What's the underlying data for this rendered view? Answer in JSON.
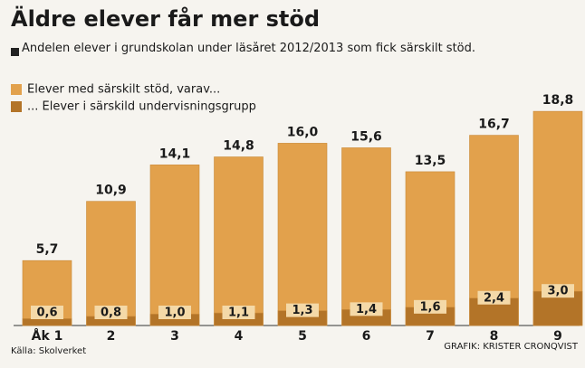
{
  "chart_data": {
    "type": "bar",
    "title": "Äldre elever får mer stöd",
    "subtitle": "Andelen elever i grundskolan under läsåret 2012/2013 som fick särskilt stöd.",
    "categories": [
      "Åk 1",
      "2",
      "3",
      "4",
      "5",
      "6",
      "7",
      "8",
      "9"
    ],
    "series": [
      {
        "name": "Elever med särskilt stöd, varav...",
        "color": "#e2a14c",
        "values": [
          5.7,
          10.9,
          14.1,
          14.8,
          16.0,
          15.6,
          13.5,
          16.7,
          18.8
        ],
        "value_labels": [
          "5,7",
          "10,9",
          "14,1",
          "14,8",
          "16,0",
          "15,6",
          "13,5",
          "16,7",
          "18,8"
        ]
      },
      {
        "name": "... Elever i särskild undervisningsgrupp",
        "color": "#b37428",
        "values": [
          0.6,
          0.8,
          1.0,
          1.1,
          1.3,
          1.4,
          1.6,
          2.4,
          3.0
        ],
        "value_labels": [
          "0,6",
          "0,8",
          "1,0",
          "1,1",
          "1,3",
          "1,4",
          "1,6",
          "2,4",
          "3,0"
        ]
      }
    ],
    "source": "Källa: Skolverket",
    "credit": "GRAFIK: KRISTER CRONQVIST"
  }
}
